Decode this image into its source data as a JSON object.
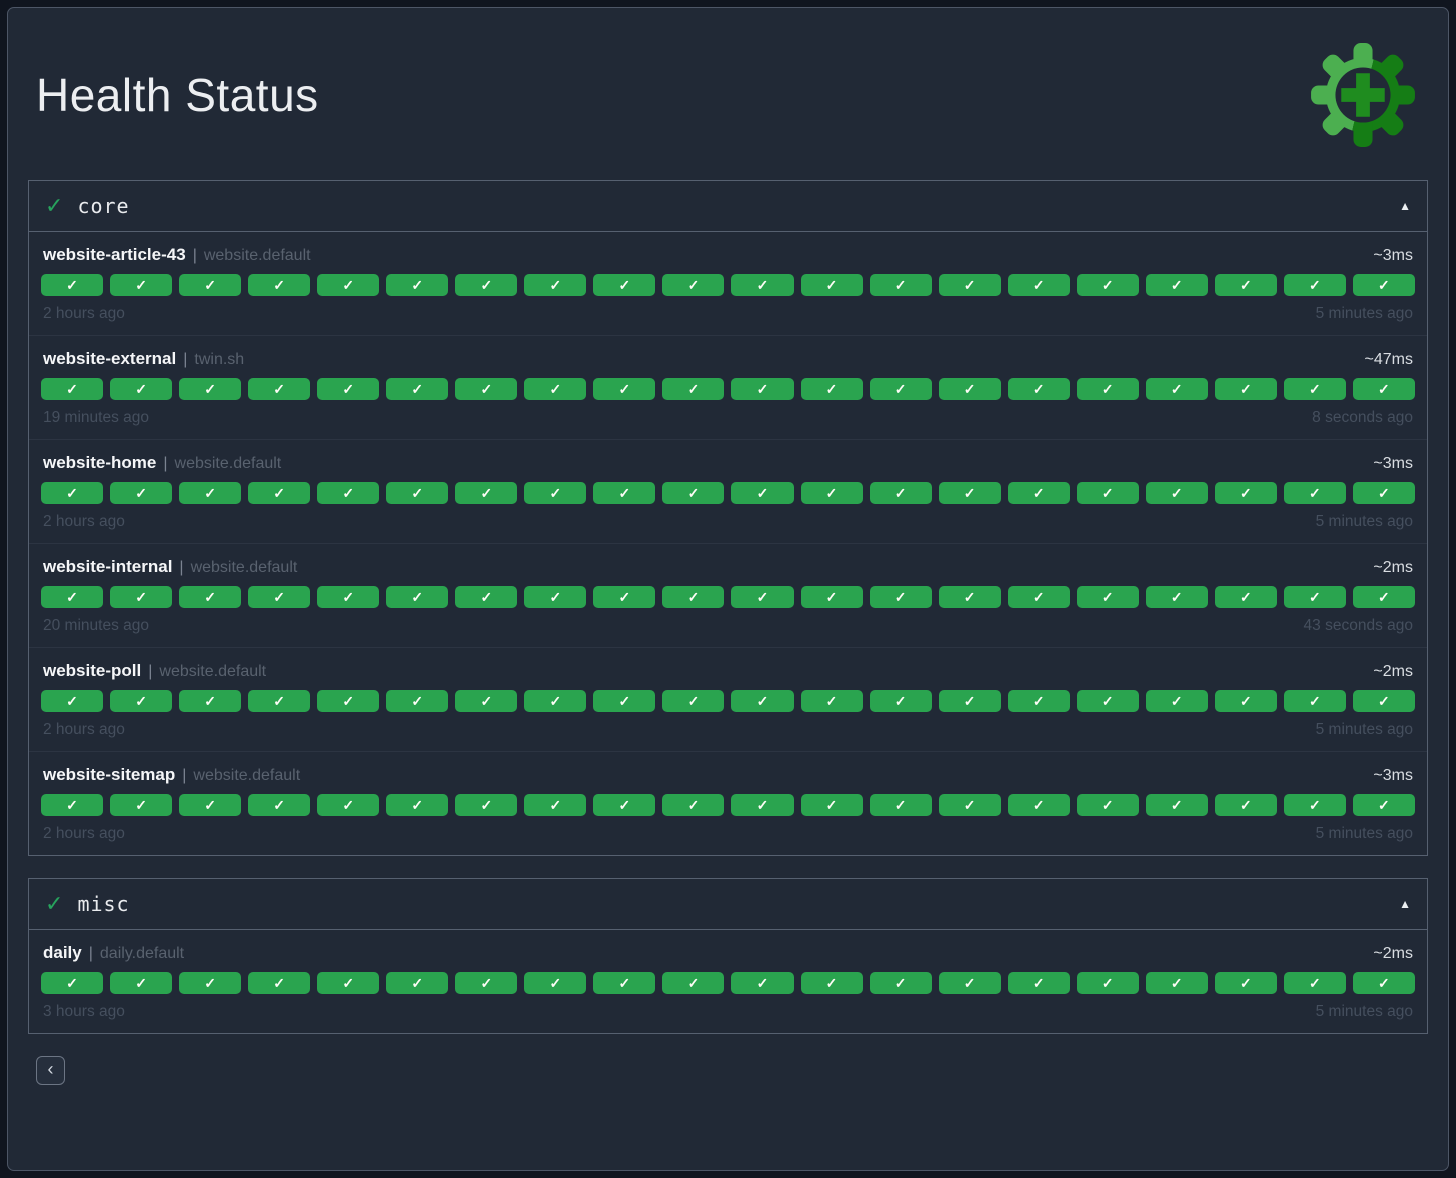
{
  "page": {
    "title": "Health Status"
  },
  "icons": {
    "section_check": "✓",
    "pill_check": "✓",
    "collapse": "▲",
    "separator": "|",
    "back": "‹"
  },
  "colors": {
    "healthy_green": "#2aa44f",
    "logo_light_green": "#4caf50",
    "logo_dark_green": "#157d15",
    "logo_plus_green": "#1f8c1f",
    "background": "#212936",
    "border": "#566070"
  },
  "sections": [
    {
      "label": "core",
      "status": "healthy",
      "entries": [
        {
          "name": "website-article-43",
          "tag": "website.default",
          "duration": "~3ms",
          "oldest": "2 hours ago",
          "latest": "5 minutes ago",
          "checks": 20
        },
        {
          "name": "website-external",
          "tag": "twin.sh",
          "duration": "~47ms",
          "oldest": "19 minutes ago",
          "latest": "8 seconds ago",
          "checks": 20
        },
        {
          "name": "website-home",
          "tag": "website.default",
          "duration": "~3ms",
          "oldest": "2 hours ago",
          "latest": "5 minutes ago",
          "checks": 20
        },
        {
          "name": "website-internal",
          "tag": "website.default",
          "duration": "~2ms",
          "oldest": "20 minutes ago",
          "latest": "43 seconds ago",
          "checks": 20
        },
        {
          "name": "website-poll",
          "tag": "website.default",
          "duration": "~2ms",
          "oldest": "2 hours ago",
          "latest": "5 minutes ago",
          "checks": 20
        },
        {
          "name": "website-sitemap",
          "tag": "website.default",
          "duration": "~3ms",
          "oldest": "2 hours ago",
          "latest": "5 minutes ago",
          "checks": 20
        }
      ]
    },
    {
      "label": "misc",
      "status": "healthy",
      "entries": [
        {
          "name": "daily",
          "tag": "daily.default",
          "duration": "~2ms",
          "oldest": "3 hours ago",
          "latest": "5 minutes ago",
          "checks": 20
        }
      ]
    }
  ]
}
